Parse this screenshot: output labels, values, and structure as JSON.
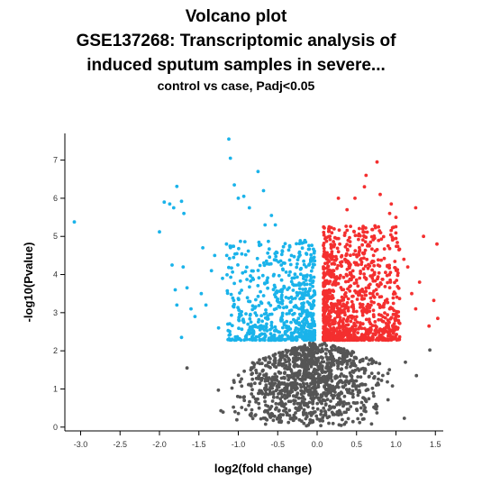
{
  "chart_data": {
    "type": "scatter",
    "title_lines": [
      "Volcano plot",
      "GSE137268: Transcriptomic analysis of",
      "induced sputum samples in severe..."
    ],
    "subtitle": "control vs case, Padj<0.05",
    "xlabel": "log2(fold change)",
    "ylabel": "-log10(Pvalue)",
    "xlim": [
      -3.2,
      1.6
    ],
    "ylim": [
      -0.1,
      7.7
    ],
    "xticks": [
      -3.0,
      -2.5,
      -2.0,
      -1.5,
      -1.0,
      -0.5,
      0.0,
      0.5,
      1.0,
      1.5
    ],
    "xtick_labels": [
      "-3.0",
      "-2.5",
      "-2.0",
      "-1.5",
      "-1.0",
      "-0.5",
      "0.0",
      "0.5",
      "1.0",
      "1.5"
    ],
    "yticks": [
      0,
      1,
      2,
      3,
      4,
      5,
      6,
      7
    ],
    "ytick_labels": [
      "0",
      "1",
      "2",
      "3",
      "4",
      "5",
      "6",
      "7"
    ],
    "grid": false,
    "significance_threshold_neglog10p": 2.27,
    "colors": {
      "down": "#1ab3ea",
      "up": "#f42f2f",
      "ns": "#555555"
    },
    "series": [
      {
        "group": "down",
        "points": [
          [
            -3.08,
            5.38
          ],
          [
            -2.0,
            5.12
          ],
          [
            -1.94,
            5.9
          ],
          [
            -1.87,
            5.85
          ],
          [
            -1.82,
            5.75
          ],
          [
            -1.78,
            6.31
          ],
          [
            -1.72,
            5.92
          ],
          [
            -1.69,
            5.6
          ],
          [
            -1.84,
            4.25
          ],
          [
            -1.8,
            3.6
          ],
          [
            -1.78,
            3.2
          ],
          [
            -1.7,
            4.2
          ],
          [
            -1.6,
            3.1
          ],
          [
            -1.65,
            3.65
          ],
          [
            -1.72,
            2.35
          ],
          [
            -1.55,
            2.9
          ],
          [
            -1.47,
            3.5
          ],
          [
            -1.45,
            4.7
          ],
          [
            -1.41,
            3.2
          ],
          [
            -1.34,
            4.1
          ],
          [
            -1.3,
            4.5
          ],
          [
            -1.25,
            2.6
          ],
          [
            -1.2,
            3.9
          ],
          [
            -1.15,
            4.8
          ],
          [
            -1.12,
            7.55
          ],
          [
            -1.1,
            7.05
          ],
          [
            -1.05,
            6.35
          ],
          [
            -1.0,
            6.0
          ],
          [
            -0.93,
            6.05
          ],
          [
            -0.86,
            5.75
          ],
          [
            -0.75,
            6.7
          ],
          [
            -0.68,
            6.2
          ],
          [
            -0.66,
            5.3
          ],
          [
            -0.58,
            5.55
          ],
          [
            -0.53,
            5.3
          ]
        ],
        "cluster": {
          "n": 650,
          "xmin": -1.15,
          "xmax": -0.03,
          "ymin": 2.28,
          "ymax": 4.9,
          "concentrate_toward": "center_low"
        }
      },
      {
        "group": "up",
        "points": [
          [
            0.76,
            6.95
          ],
          [
            0.62,
            6.6
          ],
          [
            0.6,
            6.3
          ],
          [
            0.8,
            6.1
          ],
          [
            0.48,
            6.0
          ],
          [
            0.94,
            5.85
          ],
          [
            1.25,
            5.75
          ],
          [
            1.35,
            5.0
          ],
          [
            1.52,
            4.8
          ],
          [
            1.48,
            3.32
          ],
          [
            1.53,
            2.85
          ],
          [
            1.42,
            2.65
          ],
          [
            1.3,
            3.8
          ],
          [
            1.25,
            3.1
          ],
          [
            1.1,
            4.4
          ],
          [
            1.0,
            5.5
          ],
          [
            1.15,
            4.2
          ],
          [
            1.2,
            3.5
          ],
          [
            0.27,
            6.0
          ],
          [
            0.38,
            5.7
          ],
          [
            0.92,
            5.6
          ]
        ],
        "cluster": {
          "n": 1050,
          "xmin": 0.08,
          "xmax": 1.05,
          "ymin": 2.28,
          "ymax": 5.3,
          "concentrate_toward": "center_low"
        }
      },
      {
        "group": "ns",
        "points": [
          [
            -1.65,
            1.55
          ],
          [
            1.43,
            2.02
          ],
          [
            1.26,
            1.35
          ],
          [
            1.12,
            1.7
          ]
        ],
        "cluster": {
          "n": 1150,
          "xmin": -1.3,
          "xmax": 1.15,
          "ymin": 0.02,
          "ymax": 2.26,
          "concentrate_toward": "center_low"
        }
      }
    ]
  }
}
